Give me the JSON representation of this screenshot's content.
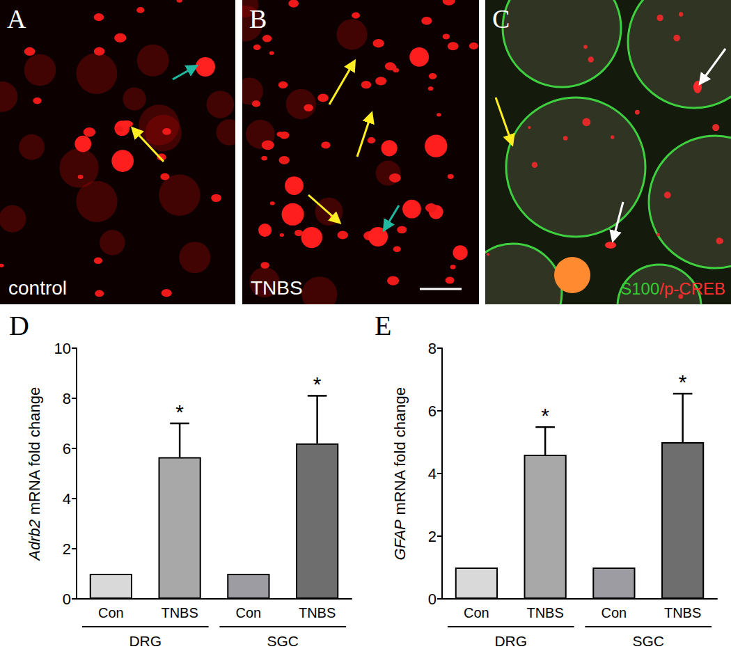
{
  "chart_data": [
    {
      "type": "bar",
      "title": "D",
      "ylabel": [
        {
          "text": "Adrb2",
          "italic": true
        },
        {
          "text": " mRNA fold change"
        }
      ],
      "categories": [
        "Con",
        "TNBS",
        "Con",
        "TNBS"
      ],
      "groups": [
        "DRG",
        "SGC"
      ],
      "values": [
        1,
        5.65,
        1,
        6.2
      ],
      "errors": [
        null,
        1.35,
        null,
        1.9
      ],
      "annotations": [
        null,
        "*",
        null,
        "*"
      ],
      "colors": [
        "#d9d9d9",
        "#a8a8a8",
        "#9c9ca2",
        "#6e6e6e"
      ],
      "ylim": [
        0,
        10
      ],
      "yticks": [
        0,
        2,
        4,
        6,
        8,
        10
      ],
      "grid": false
    },
    {
      "type": "bar",
      "title": "E",
      "ylabel": [
        {
          "text": "GFAP",
          "italic": true
        },
        {
          "text": " mRNA fold change"
        }
      ],
      "categories": [
        "Con",
        "TNBS",
        "Con",
        "TNBS"
      ],
      "groups": [
        "DRG",
        "SGC"
      ],
      "values": [
        1,
        4.6,
        1,
        5.0
      ],
      "errors": [
        null,
        0.88,
        null,
        1.55
      ],
      "annotations": [
        null,
        "*",
        null,
        "*"
      ],
      "colors": [
        "#d9d9d9",
        "#a8a8a8",
        "#9c9ca2",
        "#6e6e6e"
      ],
      "ylim": [
        0,
        8
      ],
      "yticks": [
        0,
        2,
        4,
        6,
        8
      ],
      "grid": false
    }
  ],
  "image_panels": [
    {
      "label": "A",
      "caption": [
        {
          "text": "control",
          "color": "#ffffff"
        }
      ]
    },
    {
      "label": "B",
      "caption": [
        {
          "text": "TNBS",
          "color": "#ffffff"
        }
      ]
    },
    {
      "label": "C",
      "caption": [
        {
          "text": "S100",
          "color": "#33cc33"
        },
        {
          "text": "/p-CREB",
          "color": "#ff3030"
        }
      ]
    }
  ]
}
